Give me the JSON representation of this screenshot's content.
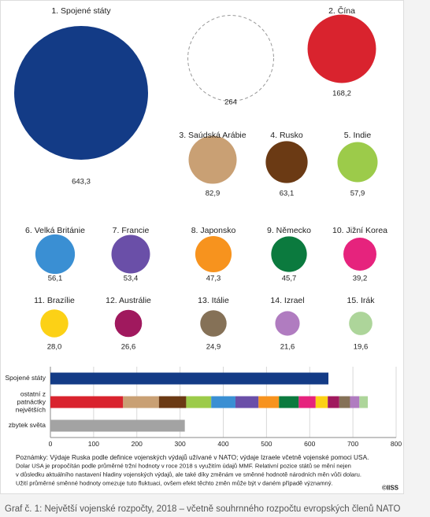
{
  "chart_data": [
    {
      "type": "bubble",
      "categories": [
        "1. Spojené státy",
        null,
        "2. Čína",
        "3. Saúdská Arábie",
        "4. Rusko",
        "5. Indie",
        "6. Velká Británie",
        "7. Francie",
        "8. Japonsko",
        "9. Německo",
        "10. Jižní Korea",
        "11. Brazílie",
        "12. Austrálie",
        "13. Itálie",
        "14. Izrael",
        "15. Irák"
      ],
      "values": [
        643.3,
        264,
        168.2,
        82.9,
        63.1,
        57.9,
        56.1,
        53.4,
        47.3,
        45.7,
        39.2,
        28.0,
        26.6,
        24.9,
        21.6,
        19.6
      ],
      "value_labels": [
        "643,3",
        "264",
        "168,2",
        "82,9",
        "63,1",
        "57,9",
        "56,1",
        "53,4",
        "47,3",
        "45,7",
        "39,2",
        "28,0",
        "26,6",
        "24,9",
        "21,6",
        "19,6"
      ],
      "colors": [
        "#133b86",
        null,
        "#d9232e",
        "#c9a074",
        "#6b3a14",
        "#9ccb4a",
        "#3a8fd3",
        "#6a4fa8",
        "#f7931e",
        "#0b7a3e",
        "#e6237d",
        "#fcd116",
        "#a0195e",
        "#857157",
        "#b07cc0",
        "#add59a"
      ]
    },
    {
      "type": "bar",
      "orientation": "horizontal",
      "stacked": true,
      "categories": [
        "Spojené státy",
        "ostatní z patnáctky největších",
        "zbytek světa"
      ],
      "series": [
        {
          "color": "#133b86",
          "values": [
            643.3,
            null,
            null
          ]
        },
        {
          "color": "#d9232e",
          "values": [
            null,
            168.2,
            null
          ]
        },
        {
          "color": "#c9a074",
          "values": [
            null,
            82.9,
            null
          ]
        },
        {
          "color": "#6b3a14",
          "values": [
            null,
            63.1,
            null
          ]
        },
        {
          "color": "#9ccb4a",
          "values": [
            null,
            57.9,
            null
          ]
        },
        {
          "color": "#3a8fd3",
          "values": [
            null,
            56.1,
            null
          ]
        },
        {
          "color": "#6a4fa8",
          "values": [
            null,
            53.4,
            null
          ]
        },
        {
          "color": "#f7931e",
          "values": [
            null,
            47.3,
            null
          ]
        },
        {
          "color": "#0b7a3e",
          "values": [
            null,
            45.7,
            null
          ]
        },
        {
          "color": "#e6237d",
          "values": [
            null,
            39.2,
            null
          ]
        },
        {
          "color": "#fcd116",
          "values": [
            null,
            28.0,
            null
          ]
        },
        {
          "color": "#a0195e",
          "values": [
            null,
            26.6,
            null
          ]
        },
        {
          "color": "#857157",
          "values": [
            null,
            24.9,
            null
          ]
        },
        {
          "color": "#b07cc0",
          "values": [
            null,
            21.6,
            null
          ]
        },
        {
          "color": "#add59a",
          "values": [
            null,
            19.6,
            null
          ]
        },
        {
          "color": "#a3a3a3",
          "values": [
            null,
            null,
            311
          ]
        }
      ],
      "xlim": [
        0,
        800
      ],
      "xticks": [
        0,
        100,
        200,
        300,
        400,
        500,
        600,
        700,
        800
      ],
      "grid": true
    }
  ],
  "notes": [
    "Poznámky: Výdaje Ruska podle definice vojenských výdajů užívané v NATO; výdaje Izraele včetně vojenské pomoci USA.",
    "Dolar USA je propočítán podle průměrné tržní hodnoty v roce 2018 s využitím údajů MMF. Relativní pozice států se mění nejen",
    "v důsledku aktuálního nastavení hladiny vojenských výdajů, ale také díky změnám ve směnné hodnotě národních měn vůči dolaru.",
    "Užití průměrné směnné hodnoty omezuje tuto fluktuaci, ovšem efekt těchto změn může být v daném případě významný."
  ],
  "source": "©IISS",
  "caption": "Graf č. 1: Největší vojenské rozpočty, 2018 – včetně souhrnného rozpočtu evropských členů NATO"
}
